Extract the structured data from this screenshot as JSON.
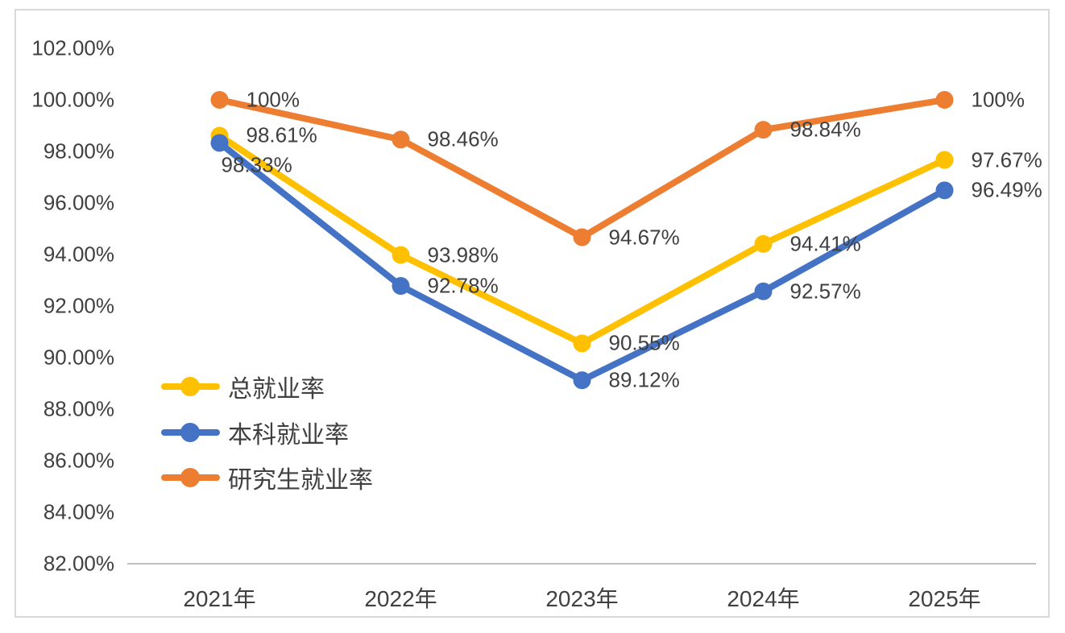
{
  "chart_data": {
    "type": "line",
    "title": "",
    "xlabel": "",
    "ylabel": "",
    "categories": [
      "2021年",
      "2022年",
      "2023年",
      "2024年",
      "2025年"
    ],
    "series": [
      {
        "key": "total-employment-rate",
        "name": "总就业率",
        "color": "#FFC000",
        "values": [
          98.61,
          93.98,
          90.55,
          94.41,
          97.67
        ],
        "labels": [
          "98.61%",
          "93.98%",
          "90.55%",
          "94.41%",
          "97.67%"
        ]
      },
      {
        "key": "undergraduate-employment-rate",
        "name": "本科就业率",
        "color": "#4472C4",
        "values": [
          98.33,
          92.78,
          89.12,
          92.57,
          96.49
        ],
        "labels": [
          "98.33%",
          "92.78%",
          "89.12%",
          "92.57%",
          "96.49%"
        ]
      },
      {
        "key": "graduate-employment-rate",
        "name": "研究生就业率",
        "color": "#ED7D31",
        "values": [
          100,
          98.46,
          94.67,
          98.84,
          100
        ],
        "labels": [
          "100%",
          "98.46%",
          "94.67%",
          "98.84%",
          "100%"
        ]
      }
    ],
    "y_axis": {
      "min": 82,
      "max": 102,
      "step": 2,
      "tick_labels": [
        "102.00%",
        "100.00%",
        "98.00%",
        "96.00%",
        "94.00%",
        "92.00%",
        "90.00%",
        "88.00%",
        "86.00%",
        "84.00%",
        "82.00%"
      ]
    },
    "legend": {
      "position": "inside-left-middle",
      "entries": [
        "总就业率",
        "本科就业率",
        "研究生就业率"
      ]
    },
    "grid": false,
    "marker": "circle",
    "colors": {
      "axis_line": "#BFBFBF",
      "frame_border": "#D9D9D9",
      "text": "#404040",
      "background": "#FFFFFF"
    }
  }
}
